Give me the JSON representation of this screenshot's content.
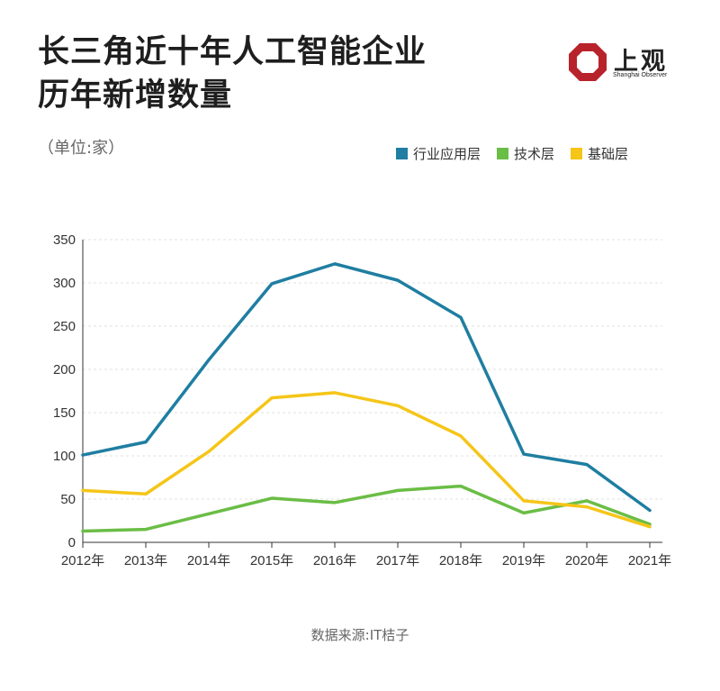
{
  "header": {
    "title_line1": "长三角近十年人工智能企业",
    "title_line2": "历年新增数量",
    "unit": "（单位:家）"
  },
  "logo": {
    "name": "上观",
    "subtitle": "Shanghai Observer",
    "color": "#b8232b"
  },
  "source": "数据来源:IT桔子",
  "chart_data": {
    "type": "line",
    "title": "长三角近十年人工智能企业历年新增数量",
    "unit": "（单位:家）",
    "categories": [
      "2012年",
      "2013年",
      "2014年",
      "2015年",
      "2016年",
      "2017年",
      "2018年",
      "2019年",
      "2020年",
      "2021年"
    ],
    "ylim": [
      0,
      350
    ],
    "yticks": [
      0,
      50,
      100,
      150,
      200,
      250,
      300,
      350
    ],
    "grid": true,
    "legend_position": "top-right",
    "series": [
      {
        "name": "行业应用层",
        "color": "#1f7ea1",
        "values": [
          101,
          116,
          211,
          299,
          322,
          303,
          260,
          102,
          90,
          37
        ]
      },
      {
        "name": "技术层",
        "color": "#6abd45",
        "values": [
          13,
          15,
          33,
          51,
          46,
          60,
          65,
          34,
          48,
          21
        ]
      },
      {
        "name": "基础层",
        "color": "#f5c518",
        "values": [
          60,
          56,
          105,
          167,
          173,
          158,
          123,
          48,
          41,
          18
        ]
      }
    ]
  }
}
